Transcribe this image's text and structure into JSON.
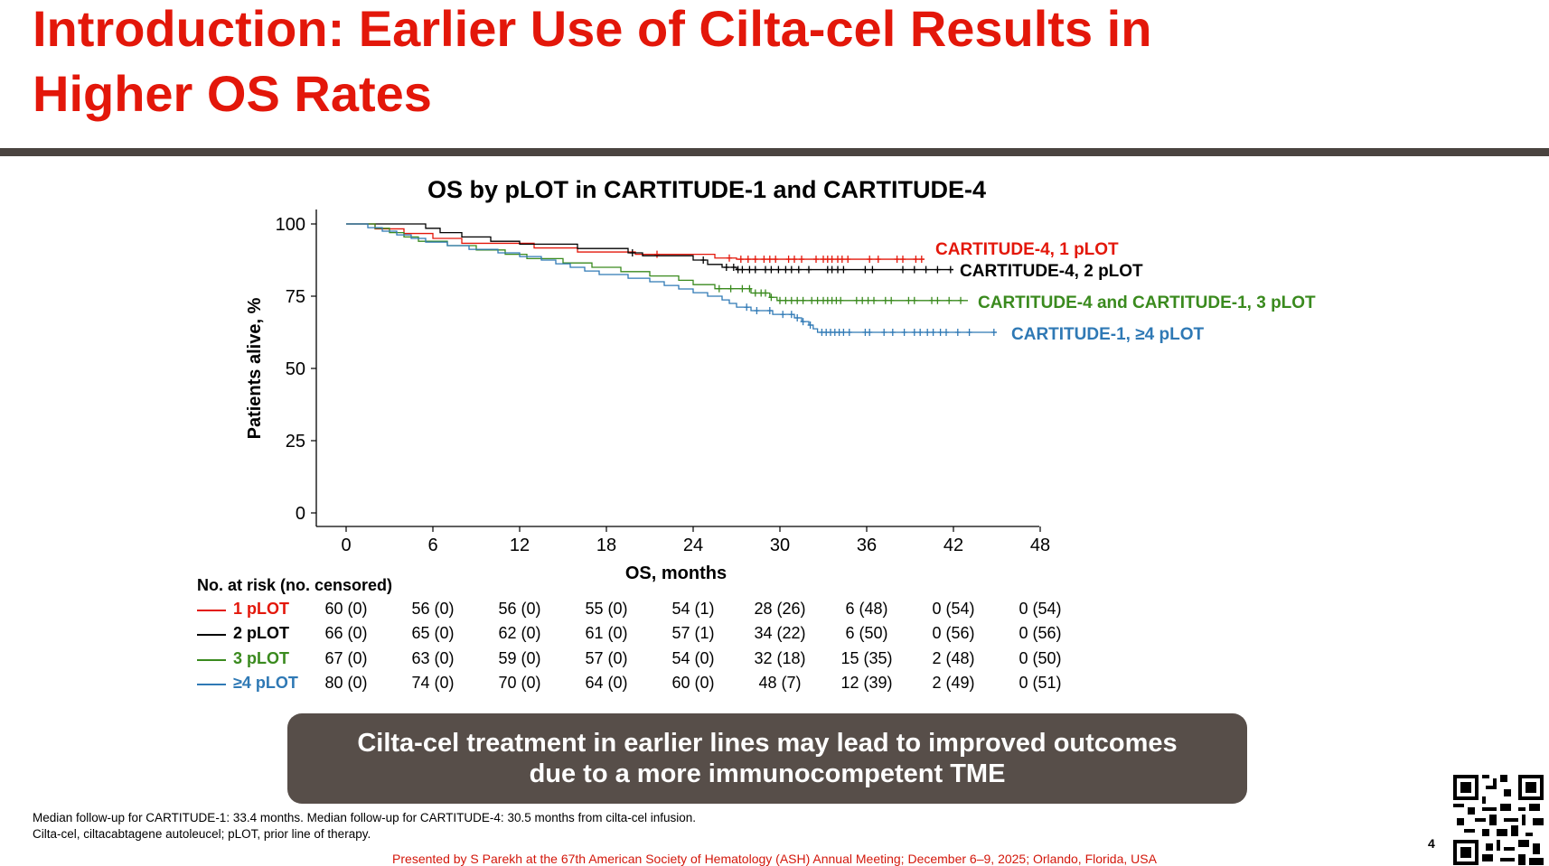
{
  "slide": {
    "title_line1": "Introduction: Earlier Use of Cilta-cel Results in",
    "title_line2": "Higher OS Rates",
    "page_number": "4",
    "banner_line1": "Cilta-cel treatment in earlier lines may lead to improved outcomes",
    "banner_line2": "due to a more immunocompetent TME",
    "footnote_1": "Median follow-up for CARTITUDE-1: 33.4 months. Median follow-up for CARTITUDE-4: 30.5 months from cilta-cel infusion.",
    "footnote_2": "Cilta-cel, ciltacabtagene autoleucel; pLOT, prior line of therapy.",
    "presented_by": "Presented by S Parekh at the 67th American Society of Hematology (ASH) Annual Meeting; December 6–9, 2025; Orlando, Florida, USA",
    "qr_icon": "qr-code-icon"
  },
  "colors": {
    "title": "#e3170a",
    "p1": "#e3170a",
    "p2": "#000000",
    "p3": "#3a8a1e",
    "p4": "#2f79b5",
    "banner": "#574e49"
  },
  "risk_table": {
    "header": "No. at risk (no. censored)",
    "rows": [
      {
        "label": "1 pLOT",
        "color": "#e3170a",
        "values": [
          "60 (0)",
          "56 (0)",
          "56 (0)",
          "55 (0)",
          "54 (1)",
          "28 (26)",
          "6 (48)",
          "0 (54)",
          "0 (54)"
        ]
      },
      {
        "label": "2 pLOT",
        "color": "#000000",
        "values": [
          "66 (0)",
          "65 (0)",
          "62 (0)",
          "61 (0)",
          "57 (1)",
          "34 (22)",
          "6 (50)",
          "0 (56)",
          "0 (56)"
        ]
      },
      {
        "label": "3 pLOT",
        "color": "#3a8a1e",
        "values": [
          "67 (0)",
          "63 (0)",
          "59 (0)",
          "57 (0)",
          "54 (0)",
          "32 (18)",
          "15 (35)",
          "2 (48)",
          "0 (50)"
        ]
      },
      {
        "label": "≥4 pLOT",
        "color": "#2f79b5",
        "values": [
          "80 (0)",
          "74 (0)",
          "70 (0)",
          "64 (0)",
          "60 (0)",
          "48 (7)",
          "12 (39)",
          "2 (49)",
          "0 (51)"
        ]
      }
    ]
  },
  "chart_data": {
    "type": "line",
    "subtype": "kaplan-meier",
    "title": "OS by pLOT in CARTITUDE-1 and CARTITUDE-4",
    "xlabel": "OS, months",
    "ylabel": "Patients alive, %",
    "xlim": [
      0,
      48
    ],
    "ylim": [
      0,
      100
    ],
    "xticks": [
      0,
      6,
      12,
      18,
      24,
      30,
      36,
      42,
      48
    ],
    "yticks": [
      0,
      25,
      50,
      75,
      100
    ],
    "series": [
      {
        "name": "CARTITUDE-4, 1 pLOT",
        "color": "#e3170a",
        "steps": [
          [
            0,
            100
          ],
          [
            2,
            98.3
          ],
          [
            4,
            96.7
          ],
          [
            6,
            95
          ],
          [
            8,
            93.3
          ],
          [
            13,
            91.7
          ],
          [
            16,
            90.3
          ],
          [
            20,
            89.5
          ],
          [
            25.5,
            88.2
          ],
          [
            27,
            87.8
          ]
        ],
        "end": 40,
        "censor": [
          21.5,
          26.5,
          27.3,
          27.8,
          28.3,
          28.9,
          29.3,
          29.7,
          30.6,
          31,
          31.5,
          32.5,
          33,
          33.3,
          33.6,
          34,
          34.3,
          34.7,
          36.2,
          36.8,
          38.1,
          38.5,
          39.4,
          39.8
        ]
      },
      {
        "name": "CARTITUDE-4, 2 pLOT",
        "color": "#000000",
        "steps": [
          [
            0,
            100
          ],
          [
            5.5,
            98.5
          ],
          [
            6.5,
            97
          ],
          [
            8,
            95.5
          ],
          [
            10,
            94
          ],
          [
            12,
            93
          ],
          [
            16,
            91.5
          ],
          [
            19.5,
            90
          ],
          [
            20.5,
            89
          ],
          [
            24,
            87.5
          ],
          [
            25,
            86
          ],
          [
            26,
            85
          ],
          [
            27,
            84.2
          ]
        ],
        "end": 42,
        "censor": [
          19.8,
          24.7,
          26.3,
          26.8,
          27.1,
          27.4,
          27.9,
          28.3,
          29,
          29.4,
          29.9,
          30.4,
          30.8,
          31.3,
          32,
          33.3,
          33.6,
          34,
          34.4,
          35.9,
          36.4,
          38.5,
          39.3,
          40.1,
          40.9,
          41.8
        ]
      },
      {
        "name": "CARTITUDE-4 and CARTITUDE-1, 3 pLOT",
        "color": "#3a8a1e",
        "steps": [
          [
            0,
            100
          ],
          [
            2,
            98.5
          ],
          [
            3,
            97
          ],
          [
            4,
            95.5
          ],
          [
            5,
            94
          ],
          [
            7,
            92.5
          ],
          [
            9,
            91
          ],
          [
            11,
            89.5
          ],
          [
            12.5,
            88
          ],
          [
            15,
            86.5
          ],
          [
            17,
            85
          ],
          [
            19,
            83.5
          ],
          [
            21,
            82
          ],
          [
            23,
            80.5
          ],
          [
            24,
            79
          ],
          [
            25.5,
            77.6
          ],
          [
            28,
            76.1
          ],
          [
            29.3,
            74.6
          ],
          [
            29.8,
            73.5
          ]
        ],
        "end": 43,
        "censor": [
          25.8,
          26.6,
          27.4,
          27.9,
          28.3,
          28.7,
          29,
          29.4,
          30,
          30.4,
          30.8,
          31.2,
          31.6,
          32.2,
          32.6,
          33,
          33.3,
          33.6,
          33.9,
          34.2,
          35.3,
          35.7,
          36.1,
          36.5,
          37.3,
          37.7,
          38.9,
          39.3,
          40.5,
          40.9,
          41.7,
          42.5
        ]
      },
      {
        "name": "CARTITUDE-1, ≥4 pLOT",
        "color": "#2f79b5",
        "steps": [
          [
            0,
            100
          ],
          [
            1.5,
            98.7
          ],
          [
            2.5,
            97.5
          ],
          [
            3.5,
            96.2
          ],
          [
            4.5,
            95
          ],
          [
            5.5,
            93.7
          ],
          [
            7,
            92.5
          ],
          [
            8.5,
            91.2
          ],
          [
            10.5,
            90
          ],
          [
            12,
            88.7
          ],
          [
            13.5,
            87.5
          ],
          [
            14.5,
            86.2
          ],
          [
            15.5,
            85
          ],
          [
            16.5,
            83.7
          ],
          [
            17.5,
            82.5
          ],
          [
            19.5,
            81.2
          ],
          [
            21,
            80
          ],
          [
            22,
            78.7
          ],
          [
            23,
            77.5
          ],
          [
            24,
            76.2
          ],
          [
            25,
            75
          ],
          [
            26,
            73.7
          ],
          [
            26.5,
            72.5
          ],
          [
            27,
            71.2
          ],
          [
            28,
            70
          ],
          [
            29.5,
            68.7
          ],
          [
            31,
            67.5
          ],
          [
            31.5,
            66.2
          ],
          [
            32,
            65
          ],
          [
            32.3,
            63.7
          ],
          [
            32.6,
            62.5
          ]
        ],
        "end": 45,
        "censor": [
          27.7,
          28.4,
          29.3,
          30.2,
          30.8,
          31.2,
          31.6,
          32.1,
          32.9,
          33.2,
          33.5,
          33.8,
          34.1,
          34.4,
          34.8,
          35.9,
          36.2,
          37.2,
          37.8,
          38.6,
          39.3,
          39.7,
          40.2,
          40.6,
          41.1,
          41.5,
          42.3,
          43.1,
          44.8
        ]
      }
    ],
    "risk_table_header": "No. at risk (no. censored)"
  }
}
